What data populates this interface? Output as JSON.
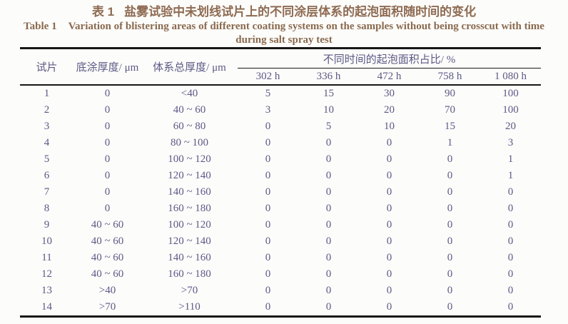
{
  "titles": {
    "zh_label": "表 1",
    "zh_text": "盐雾试验中未划线试片上的不同涂层体系的起泡面积随时间的变化",
    "en_label": "Table 1",
    "en_line1": "Variation of blistering areas of different coating systems on the samples without being crosscut with time",
    "en_line2": "during salt spray test"
  },
  "table": {
    "headers": {
      "sample": "试片",
      "primer_thickness": "底涂厚度/ μm",
      "total_thickness": "体系总厚度/ μm",
      "group": "不同时间的起泡面积占比/ %",
      "time_cols": [
        "302 h",
        "336 h",
        "472 h",
        "758 h",
        "1 080 h"
      ]
    },
    "rows": [
      [
        "1",
        "0",
        "<40",
        "5",
        "15",
        "30",
        "90",
        "100"
      ],
      [
        "2",
        "0",
        "40 ~ 60",
        "3",
        "10",
        "20",
        "70",
        "100"
      ],
      [
        "3",
        "0",
        "60 ~ 80",
        "0",
        "5",
        "10",
        "15",
        "20"
      ],
      [
        "4",
        "0",
        "80 ~ 100",
        "0",
        "0",
        "0",
        "1",
        "3"
      ],
      [
        "5",
        "0",
        "100 ~ 120",
        "0",
        "0",
        "0",
        "0",
        "1"
      ],
      [
        "6",
        "0",
        "120 ~ 140",
        "0",
        "0",
        "0",
        "0",
        "1"
      ],
      [
        "7",
        "0",
        "140 ~ 160",
        "0",
        "0",
        "0",
        "0",
        "0"
      ],
      [
        "8",
        "0",
        "160 ~ 180",
        "0",
        "0",
        "0",
        "0",
        "0"
      ],
      [
        "9",
        "40 ~ 60",
        "100 ~ 120",
        "0",
        "0",
        "0",
        "0",
        "0"
      ],
      [
        "10",
        "40 ~ 60",
        "120 ~ 140",
        "0",
        "0",
        "0",
        "0",
        "0"
      ],
      [
        "11",
        "40 ~ 60",
        "140 ~ 160",
        "0",
        "0",
        "0",
        "0",
        "0"
      ],
      [
        "12",
        "40 ~ 60",
        "160 ~ 180",
        "0",
        "0",
        "0",
        "0",
        "0"
      ],
      [
        "13",
        ">40",
        ">70",
        "0",
        "0",
        "0",
        "0",
        "0"
      ],
      [
        "14",
        ">70",
        ">110",
        "0",
        "0",
        "0",
        "0",
        "0"
      ]
    ]
  },
  "colors": {
    "title_text": "#8e6b52",
    "table_text": "#5d5886",
    "rule": "#171717",
    "background": "#fcfcfa"
  }
}
